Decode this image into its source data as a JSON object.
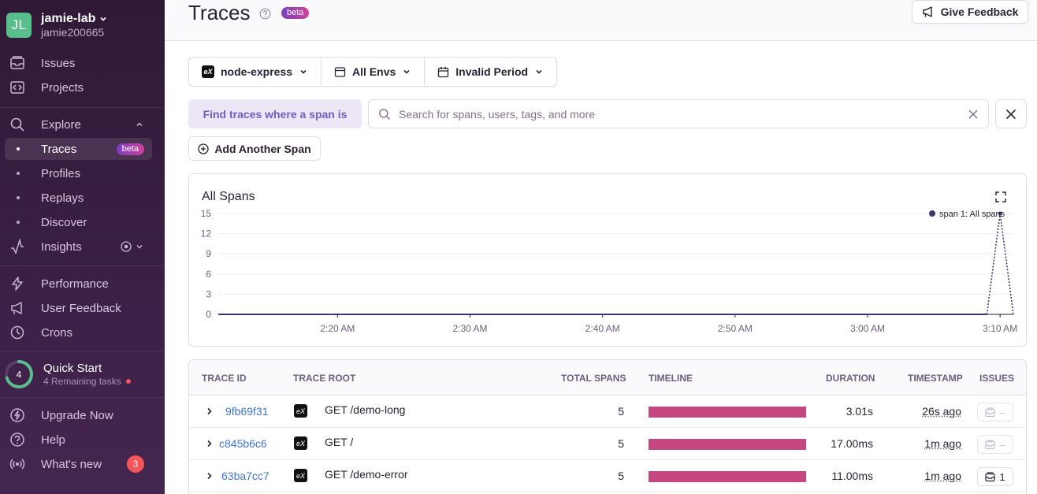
{
  "sidebar": {
    "org": {
      "initials": "JL",
      "name": "jamie-lab",
      "user": "jamie200665"
    },
    "items": [
      {
        "label": "Issues",
        "icon": "issues-icon"
      },
      {
        "label": "Projects",
        "icon": "projects-icon"
      },
      {
        "label": "Explore",
        "icon": "search-icon"
      },
      {
        "label": "Traces",
        "badge": "beta"
      },
      {
        "label": "Profiles"
      },
      {
        "label": "Replays"
      },
      {
        "label": "Discover"
      },
      {
        "label": "Insights",
        "icon": "insights-icon"
      },
      {
        "label": "Performance",
        "icon": "lightning-icon"
      },
      {
        "label": "User Feedback",
        "icon": "megaphone-icon"
      },
      {
        "label": "Crons",
        "icon": "clock-icon"
      }
    ],
    "quickstart": {
      "count": "4",
      "title": "Quick Start",
      "subtitle": "4 Remaining tasks",
      "progress": 0.7
    },
    "bottom": [
      {
        "label": "Upgrade Now",
        "icon": "upgrade-icon"
      },
      {
        "label": "Help",
        "icon": "help-icon"
      },
      {
        "label": "What's new",
        "icon": "broadcast-icon",
        "count": "3"
      }
    ]
  },
  "header": {
    "title": "Traces",
    "badge": "beta",
    "feedback_label": "Give Feedback"
  },
  "filters": {
    "project": "node-express",
    "project_icon_text": "eX",
    "env": "All Envs",
    "period": "Invalid Period"
  },
  "search": {
    "find_label": "Find traces where a span is",
    "placeholder": "Search for spans, users, tags, and more",
    "value": "",
    "add_span_label": "Add Another Span"
  },
  "chart_data": {
    "type": "line",
    "title": "All Spans",
    "x": [
      "2:20 AM",
      "2:30 AM",
      "2:40 AM",
      "2:50 AM",
      "3:00 AM",
      "3:10 AM"
    ],
    "ylim": [
      0,
      15
    ],
    "yticks": [
      0,
      3,
      6,
      9,
      12,
      15
    ],
    "series": [
      {
        "name": "span 1: All spans",
        "color": "#3f3574",
        "points": [
          {
            "x": "2:11 AM",
            "y": 0
          },
          {
            "x": "3:09 AM",
            "y": 0
          },
          {
            "x": "3:10 AM",
            "y": 15
          },
          {
            "x": "3:11 AM",
            "y": 0
          }
        ]
      }
    ],
    "legend": "top-right",
    "grid": true
  },
  "table": {
    "headers": {
      "trace_id": "Trace ID",
      "trace_root": "Trace Root",
      "total_spans": "Total Spans",
      "timeline": "Timeline",
      "duration": "Duration",
      "timestamp": "Timestamp",
      "issues": "Issues"
    },
    "rows": [
      {
        "id": "9fb69f31",
        "icon": "eX",
        "root": "GET /demo-long",
        "spans": "5",
        "duration": "3.01s",
        "timestamp": "26s ago",
        "issues": "–",
        "has_issues": false
      },
      {
        "id": "c845b6c6",
        "icon": "eX",
        "root": "GET /",
        "spans": "5",
        "duration": "17.00ms",
        "timestamp": "1m ago",
        "issues": "–",
        "has_issues": false
      },
      {
        "id": "63ba7cc7",
        "icon": "eX",
        "root": "GET /demo-error",
        "spans": "5",
        "duration": "11.00ms",
        "timestamp": "1m ago",
        "issues": "1",
        "has_issues": true
      }
    ]
  }
}
